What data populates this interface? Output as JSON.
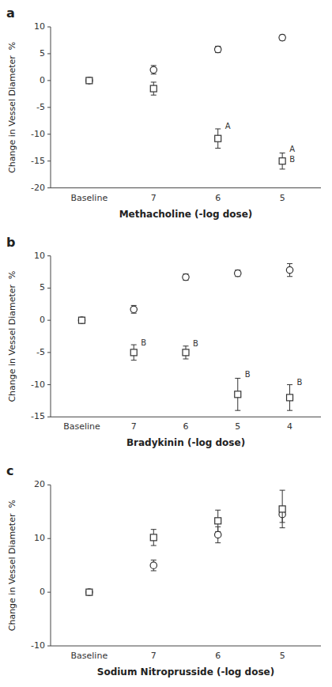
{
  "chart_data": [
    {
      "type": "errorbar",
      "title": "a",
      "x_label": "Methacholine (-log dose)",
      "y_label": "Change in Vessel Diameter  %",
      "categories": [
        "Baseline",
        "7",
        "6",
        "5"
      ],
      "ylim": [
        -20,
        10
      ],
      "yticks": [
        -20,
        -15,
        -10,
        -5,
        0,
        5,
        10
      ],
      "color": "#333333",
      "grid": false,
      "series": [
        {
          "marker": "circle",
          "values": [
            0,
            2.0,
            5.8,
            8.0
          ],
          "errors": [
            0.0,
            0.8,
            0.6,
            0.5
          ]
        },
        {
          "marker": "square",
          "values": [
            0,
            -1.5,
            -10.8,
            -15.0
          ],
          "errors": [
            0.0,
            1.2,
            1.8,
            1.5
          ]
        }
      ],
      "annotations": [
        {
          "text": "A",
          "x": "6",
          "y": -8.5
        },
        {
          "text": "A",
          "x": "5",
          "y": -12.8
        },
        {
          "text": "B",
          "x": "5",
          "y": -14.7
        }
      ]
    },
    {
      "type": "errorbar",
      "title": "b",
      "x_label": "Bradykinin (-log dose)",
      "y_label": "Change in Vessel Diameter  %",
      "categories": [
        "Baseline",
        "7",
        "6",
        "5",
        "4"
      ],
      "ylim": [
        -15,
        10
      ],
      "yticks": [
        -15,
        -10,
        -5,
        0,
        5,
        10
      ],
      "color": "#333333",
      "grid": false,
      "series": [
        {
          "marker": "circle",
          "values": [
            0,
            1.7,
            6.7,
            7.3,
            7.8
          ],
          "errors": [
            0.0,
            0.6,
            0.5,
            0.5,
            1.0
          ]
        },
        {
          "marker": "square",
          "values": [
            0,
            -5.0,
            -5.0,
            -11.5,
            -12.0
          ],
          "errors": [
            0.0,
            1.2,
            1.0,
            2.5,
            2.0
          ]
        }
      ],
      "annotations": [
        {
          "text": "B",
          "x": "7",
          "y": -3.5
        },
        {
          "text": "B",
          "x": "6",
          "y": -3.7
        },
        {
          "text": "B",
          "x": "5",
          "y": -8.5
        },
        {
          "text": "B",
          "x": "4",
          "y": -9.7
        }
      ]
    },
    {
      "type": "errorbar",
      "title": "c",
      "x_label": "Sodium Nitroprusside (-log dose)",
      "y_label": "Change in Vessel Diameter  %",
      "categories": [
        "Baseline",
        "7",
        "6",
        "5"
      ],
      "ylim": [
        -10,
        20
      ],
      "yticks": [
        -10,
        0,
        10,
        20
      ],
      "color": "#333333",
      "grid": false,
      "series": [
        {
          "marker": "circle",
          "values": [
            0,
            5.0,
            10.7,
            14.5
          ],
          "errors": [
            0.0,
            1.0,
            1.5,
            1.5
          ]
        },
        {
          "marker": "square",
          "values": [
            0,
            10.2,
            13.3,
            15.5
          ],
          "errors": [
            0.0,
            1.5,
            2.0,
            3.5
          ]
        }
      ]
    }
  ]
}
